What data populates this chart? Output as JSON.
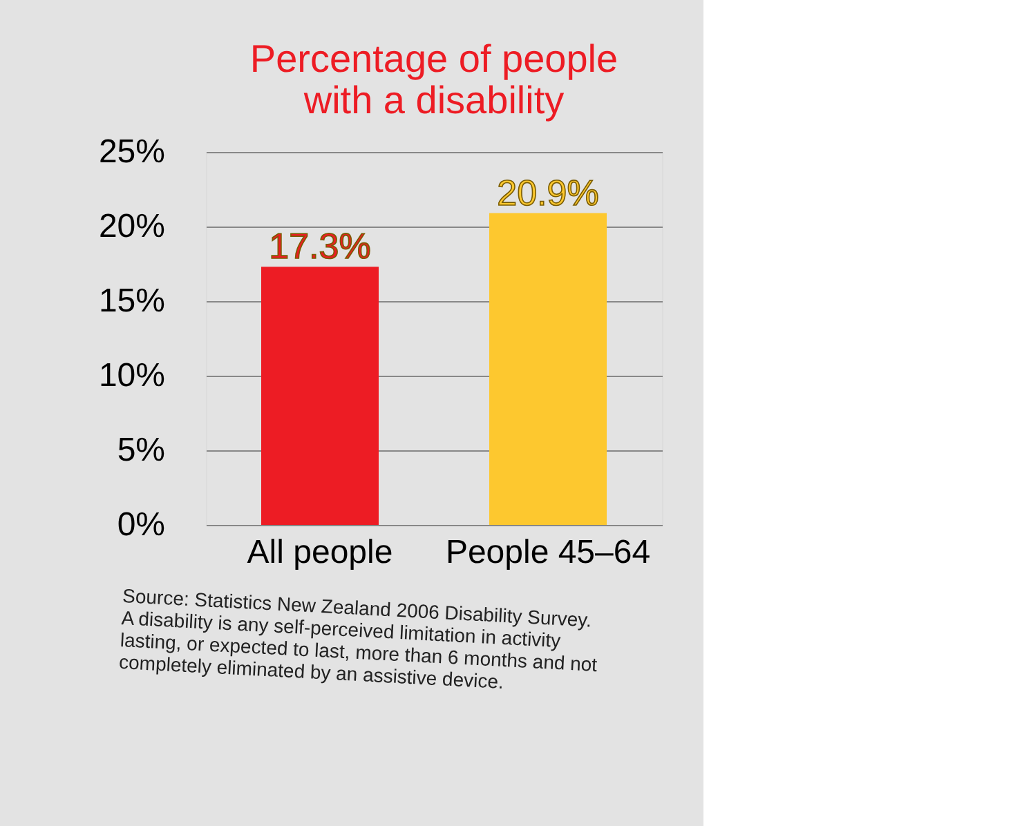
{
  "chart_data": {
    "type": "bar",
    "title": "Percentage of people with a disability",
    "categories": [
      "All people",
      "People 45–64"
    ],
    "values": [
      17.3,
      20.9
    ],
    "colors": [
      "#ed1c24",
      "#fdc82f"
    ],
    "value_labels": [
      "17.3%",
      "20.9%"
    ],
    "ylim": [
      0,
      25
    ],
    "yticks": [
      {
        "value": 0,
        "label": "0%"
      },
      {
        "value": 5,
        "label": "5%"
      },
      {
        "value": 10,
        "label": "10%"
      },
      {
        "value": 15,
        "label": "15%"
      },
      {
        "value": 20,
        "label": "20%"
      },
      {
        "value": 25,
        "label": "25%"
      }
    ],
    "grid": "y",
    "annotations": [
      "Source: Statistics New Zealand 2006 Disability Survey.",
      "A disability is any self-perceived limitation in activity lasting, or expected to last, more than 6 months and not completely eliminated by an assistive device."
    ]
  }
}
